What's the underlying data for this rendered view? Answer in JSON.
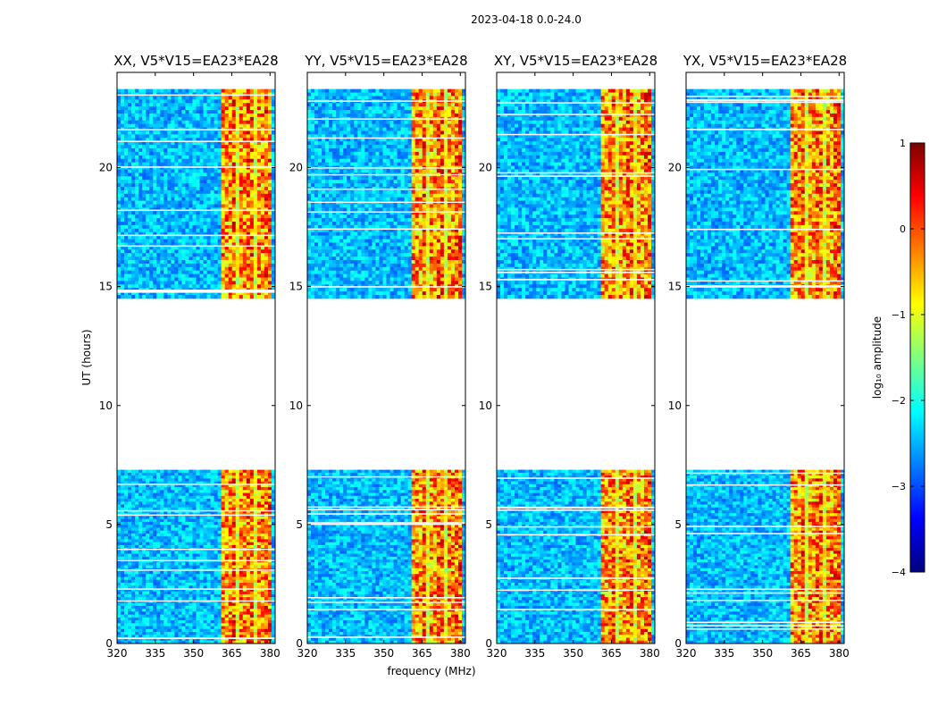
{
  "figure": {
    "suptitle": "2023-04-18 0.0-24.0",
    "xlabel": "frequency (MHz)",
    "ylabel": "UT (hours)"
  },
  "chart_data": {
    "type": "heatmap",
    "title": "2023-04-18 0.0-24.0",
    "xlabel": "frequency (MHz)",
    "ylabel": "UT (hours)",
    "xlim": [
      320,
      382
    ],
    "ylim": [
      0,
      24
    ],
    "xticks": [
      320,
      335,
      350,
      365,
      380
    ],
    "yticks": [
      0,
      5,
      10,
      15,
      20
    ],
    "panels": [
      {
        "title": "XX, V5*V15=EA23*EA28"
      },
      {
        "title": "YY, V5*V15=EA23*EA28"
      },
      {
        "title": "XY, V5*V15=EA23*EA28"
      },
      {
        "title": "YX, V5*V15=EA23*EA28"
      }
    ],
    "data_gap_ut": [
      7.3,
      14.5
    ],
    "data_segments_ut": [
      [
        0,
        7.3
      ],
      [
        14.5,
        23.3
      ]
    ],
    "bright_band_mhz": [
      361,
      380
    ],
    "colorbar": {
      "label": "log₁₀ amplitude",
      "range": [
        -4,
        1
      ],
      "ticks": [
        1,
        0,
        -1,
        -2,
        -3,
        -4
      ],
      "colormap": [
        "#00007f",
        "#0000ff",
        "#007fff",
        "#00ffff",
        "#7fff7f",
        "#ffff00",
        "#ff7f00",
        "#ff0000",
        "#7f0000"
      ]
    }
  }
}
